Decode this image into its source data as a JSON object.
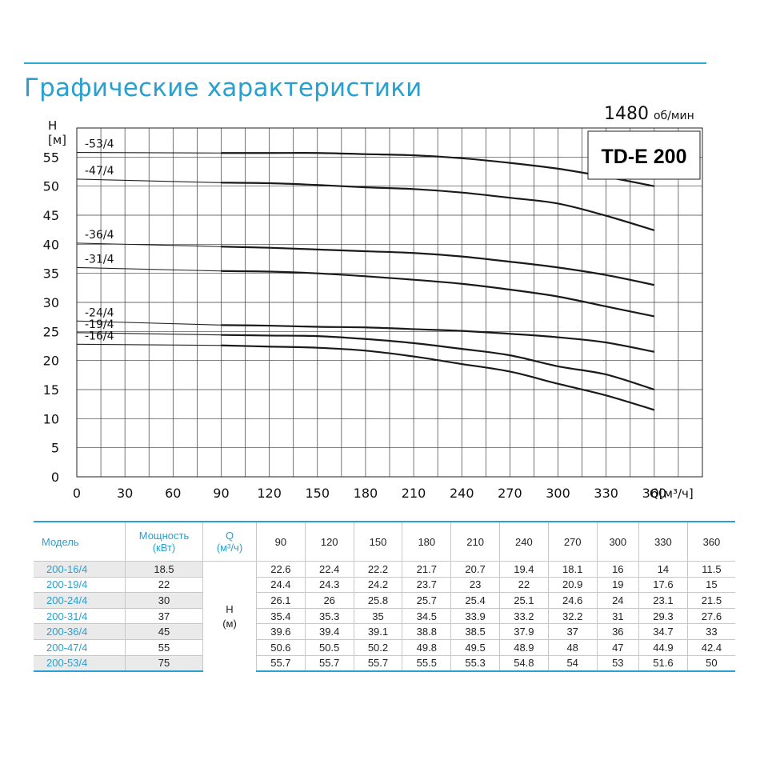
{
  "page": {
    "title": "Графические характеристики",
    "speed_value": "1480",
    "speed_unit": "об/мин",
    "model_label": "TD-E 200"
  },
  "chart_data": {
    "type": "line",
    "title": "",
    "ylabel": "H\n[м]",
    "xlabel": "Q[м³/ч]",
    "xlim": [
      0,
      390
    ],
    "ylim": [
      0,
      60
    ],
    "xticks": [
      0,
      30,
      60,
      90,
      120,
      150,
      180,
      210,
      240,
      270,
      300,
      330,
      360
    ],
    "yticks": [
      0,
      5,
      10,
      15,
      20,
      25,
      30,
      35,
      40,
      45,
      50,
      55
    ],
    "grid": true,
    "x": [
      90,
      120,
      150,
      180,
      210,
      240,
      270,
      300,
      330,
      360
    ],
    "series": [
      {
        "name": "-16/4",
        "values": [
          22.6,
          22.4,
          22.2,
          21.7,
          20.7,
          19.4,
          18.1,
          16,
          14,
          11.5
        ]
      },
      {
        "name": "-19/4",
        "values": [
          24.4,
          24.3,
          24.2,
          23.7,
          23,
          22,
          20.9,
          19,
          17.6,
          15
        ]
      },
      {
        "name": "-24/4",
        "values": [
          26.1,
          26,
          25.8,
          25.7,
          25.4,
          25.1,
          24.6,
          24,
          23.1,
          21.5
        ]
      },
      {
        "name": "-31/4",
        "values": [
          35.4,
          35.3,
          35,
          34.5,
          33.9,
          33.2,
          32.2,
          31,
          29.3,
          27.6
        ]
      },
      {
        "name": "-36/4",
        "values": [
          39.6,
          39.4,
          39.1,
          38.8,
          38.5,
          37.9,
          37,
          36,
          34.7,
          33
        ]
      },
      {
        "name": "-47/4",
        "values": [
          50.6,
          50.5,
          50.2,
          49.8,
          49.5,
          48.9,
          48,
          47,
          44.9,
          42.4
        ]
      },
      {
        "name": "-53/4",
        "values": [
          55.7,
          55.7,
          55.7,
          55.5,
          55.3,
          54.8,
          54,
          53,
          51.6,
          50
        ]
      }
    ],
    "shutoff_head": {
      "-16/4": 22.8,
      "-19/4": 24.8,
      "-24/4": 26.8,
      "-31/4": 36.0,
      "-36/4": 40.2,
      "-47/4": 51.2,
      "-53/4": 55.8
    }
  },
  "table": {
    "header": {
      "model": "Модель",
      "power_1": "Мощность",
      "power_2": "(кВт)",
      "flow_1": "Q",
      "flow_2": "(м³/ч)",
      "head_1": "H",
      "head_2": "(м)",
      "flows": [
        "90",
        "120",
        "150",
        "180",
        "210",
        "240",
        "270",
        "300",
        "330",
        "360"
      ]
    },
    "rows": [
      {
        "model": "200-16/4",
        "power": "18.5",
        "values": [
          "22.6",
          "22.4",
          "22.2",
          "21.7",
          "20.7",
          "19.4",
          "18.1",
          "16",
          "14",
          "11.5"
        ]
      },
      {
        "model": "200-19/4",
        "power": "22",
        "values": [
          "24.4",
          "24.3",
          "24.2",
          "23.7",
          "23",
          "22",
          "20.9",
          "19",
          "17.6",
          "15"
        ]
      },
      {
        "model": "200-24/4",
        "power": "30",
        "values": [
          "26.1",
          "26",
          "25.8",
          "25.7",
          "25.4",
          "25.1",
          "24.6",
          "24",
          "23.1",
          "21.5"
        ]
      },
      {
        "model": "200-31/4",
        "power": "37",
        "values": [
          "35.4",
          "35.3",
          "35",
          "34.5",
          "33.9",
          "33.2",
          "32.2",
          "31",
          "29.3",
          "27.6"
        ]
      },
      {
        "model": "200-36/4",
        "power": "45",
        "values": [
          "39.6",
          "39.4",
          "39.1",
          "38.8",
          "38.5",
          "37.9",
          "37",
          "36",
          "34.7",
          "33"
        ]
      },
      {
        "model": "200-47/4",
        "power": "55",
        "values": [
          "50.6",
          "50.5",
          "50.2",
          "49.8",
          "49.5",
          "48.9",
          "48",
          "47",
          "44.9",
          "42.4"
        ]
      },
      {
        "model": "200-53/4",
        "power": "75",
        "values": [
          "55.7",
          "55.7",
          "55.7",
          "55.5",
          "55.3",
          "54.8",
          "54",
          "53",
          "51.6",
          "50"
        ]
      }
    ]
  },
  "colors": {
    "accent": "#29a0d0",
    "curve": "#1a1a1a",
    "grid": "#444444",
    "row_shade": "#eaeaea"
  }
}
